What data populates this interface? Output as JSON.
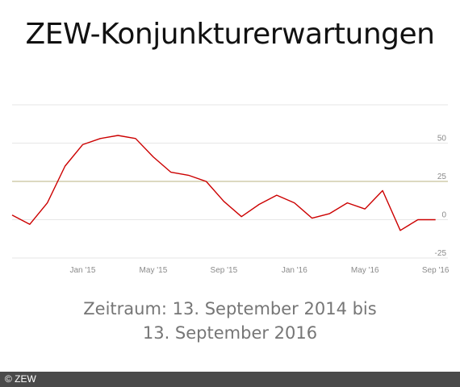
{
  "title": "ZEW-Konjunkturerwartungen",
  "caption": {
    "line1": "Zeitraum: 13. September 2014 bis",
    "line2": "13. September 2016"
  },
  "footer": {
    "credit": "© ZEW"
  },
  "colors": {
    "line": "#cc0000",
    "reference_line": "#c8c29a",
    "grid": "#e6e6e6",
    "tick_text": "#8a8a8a",
    "footer_bg": "#4a4a4a"
  },
  "chart_data": {
    "type": "line",
    "title": "ZEW-Konjunkturerwartungen",
    "xlabel": "",
    "ylabel": "",
    "ylim": [
      -25,
      75
    ],
    "yticks": [
      50,
      25,
      0,
      -25
    ],
    "ytick_labels": [
      "50",
      "25",
      "0",
      "-25"
    ],
    "grid": true,
    "xlim_index": [
      0,
      24.7
    ],
    "xticks": [
      {
        "label": "Jan '15",
        "index": 4
      },
      {
        "label": "May '15",
        "index": 8
      },
      {
        "label": "Sep '15",
        "index": 12
      },
      {
        "label": "Jan '16",
        "index": 16
      },
      {
        "label": "May '16",
        "index": 20
      },
      {
        "label": "Sep '16",
        "index": 24
      }
    ],
    "reference_line": 25,
    "series": [
      {
        "values": [
          3,
          -3,
          11,
          35,
          49,
          53,
          55,
          53,
          41,
          31,
          29,
          25,
          12,
          2,
          10,
          16,
          11,
          1,
          4,
          11,
          7,
          19,
          -7,
          0,
          0
        ]
      }
    ]
  }
}
